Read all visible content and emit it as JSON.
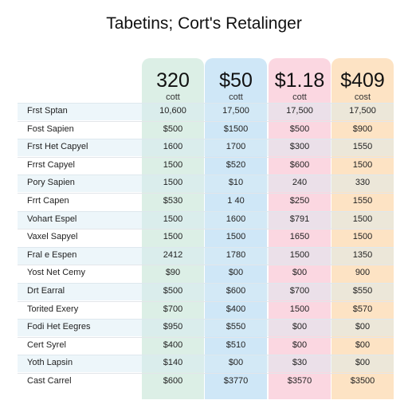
{
  "title": "Tabetins; Cort's Retalinger",
  "columns": [
    {
      "price": "320",
      "sub": "cott",
      "color": "#dcefe6"
    },
    {
      "price": "$50",
      "sub": "cott",
      "color": "#cfe7f7"
    },
    {
      "price": "$1.18",
      "sub": "cott",
      "color": "#fbd7e1"
    },
    {
      "price": "$409",
      "sub": "cost",
      "color": "#fde3c4"
    }
  ],
  "rows": [
    {
      "label": "Frst Sptan",
      "values": [
        "10,600",
        "17,500",
        "17,500",
        "17,500"
      ]
    },
    {
      "label": "Fost Sapien",
      "values": [
        "$500",
        "$1500",
        "$500",
        "$900"
      ]
    },
    {
      "label": "Frst Het Capyel",
      "values": [
        "1600",
        "1700",
        "$300",
        "1550"
      ]
    },
    {
      "label": "Frrst Capyel",
      "values": [
        "1500",
        "$520",
        "$600",
        "1500"
      ]
    },
    {
      "label": "Pory Sapien",
      "values": [
        "1500",
        "$10",
        "240",
        "330"
      ]
    },
    {
      "label": "Frrt Capen",
      "values": [
        "$530",
        "1 40",
        "$250",
        "1550"
      ]
    },
    {
      "label": "Vohart Espel",
      "values": [
        "1500",
        "1600",
        "$791",
        "1500"
      ]
    },
    {
      "label": "Vaxel Sapyel",
      "values": [
        "1500",
        "1500",
        "1650",
        "1500"
      ]
    },
    {
      "label": "Fral e Espen",
      "values": [
        "2412",
        "1780",
        "1500",
        "1350"
      ]
    },
    {
      "label": "Yost Net Cemy",
      "values": [
        "$90",
        "$00",
        "$00",
        "900"
      ]
    },
    {
      "label": "Drt Earral",
      "values": [
        "$500",
        "$600",
        "$700",
        "$550"
      ]
    },
    {
      "label": "Torited Exery",
      "values": [
        "$700",
        "$400",
        "1500",
        "$570"
      ]
    },
    {
      "label": "Fodi Het Eegres",
      "values": [
        "$950",
        "$550",
        "$00",
        "$00"
      ]
    },
    {
      "label": "Cert Syrel",
      "values": [
        "$400",
        "$510",
        "$00",
        "$00"
      ]
    },
    {
      "label": "Yoth Lapsin",
      "values": [
        "$140",
        "$00",
        "$30",
        "$00"
      ]
    },
    {
      "label": "Cast Carrel",
      "values": [
        "$600",
        "$3770",
        "$3570",
        "$3500"
      ]
    }
  ]
}
